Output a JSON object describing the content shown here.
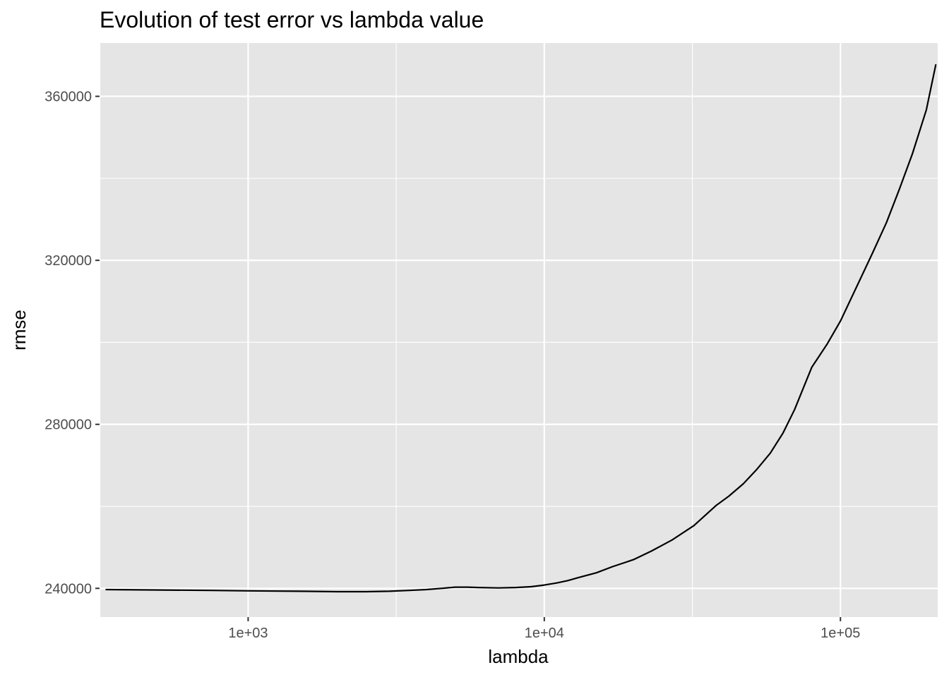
{
  "chart_data": {
    "type": "line",
    "title": "Evolution of test error vs lambda value",
    "xlabel": "lambda",
    "ylabel": "rmse",
    "x_scale": "log10",
    "xlim": [
      315,
      213000
    ],
    "ylim": [
      233000,
      373000
    ],
    "x_ticks": [
      {
        "value": 1000,
        "label": "1e+03"
      },
      {
        "value": 10000,
        "label": "1e+04"
      },
      {
        "value": 100000,
        "label": "1e+05"
      }
    ],
    "x_minor_ticks": [
      316,
      3162,
      31623
    ],
    "y_ticks": [
      {
        "value": 240000,
        "label": "240000"
      },
      {
        "value": 280000,
        "label": "280000"
      },
      {
        "value": 320000,
        "label": "320000"
      },
      {
        "value": 360000,
        "label": "360000"
      }
    ],
    "y_minor_ticks": [
      260000,
      300000,
      340000
    ],
    "grid": true,
    "legend": "none",
    "colors": {
      "panel_background": "#e5e5e5",
      "grid": "#ffffff",
      "line": "#000000",
      "tick_text": "#4d4d4d"
    },
    "series": [
      {
        "x": [
          330,
          500,
          750,
          1000,
          1500,
          2000,
          2500,
          3000,
          3500,
          4000,
          4500,
          5000,
          5500,
          6000,
          7000,
          8000,
          9000,
          10000,
          11000,
          12000,
          13000,
          15000,
          17000,
          20000,
          23000,
          27000,
          32000,
          38000,
          42000,
          47000,
          52000,
          58000,
          64000,
          70000,
          80000,
          90000,
          100000,
          113000,
          128000,
          143000,
          158000,
          175000,
          195000,
          210000
        ],
        "y": [
          239700,
          239600,
          239500,
          239400,
          239300,
          239200,
          239200,
          239300,
          239500,
          239700,
          240000,
          240300,
          240300,
          240200,
          240100,
          240200,
          240400,
          240800,
          241300,
          241900,
          242600,
          243800,
          245300,
          247000,
          249100,
          251800,
          255300,
          260200,
          262500,
          265500,
          268900,
          273000,
          277900,
          283600,
          293900,
          299500,
          305200,
          313300,
          321600,
          329200,
          337300,
          346000,
          356700,
          367800
        ]
      }
    ]
  }
}
